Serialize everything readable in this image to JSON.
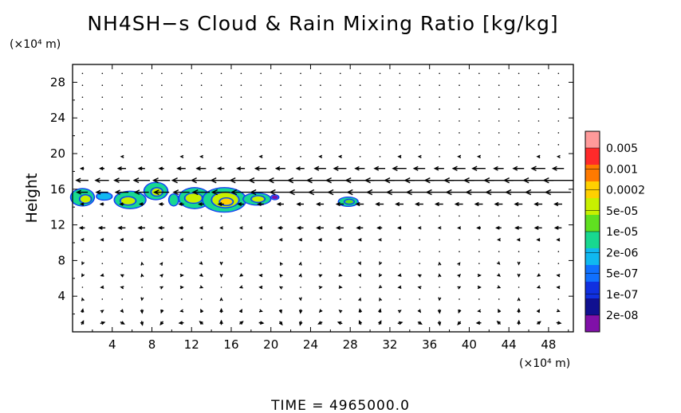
{
  "chart_data": {
    "type": "heatmap",
    "title": "NH4SH−s Cloud & Rain Mixing Ratio [kg/kg]",
    "ylabel": "Height",
    "x_unit_label": "(×10⁴ m)",
    "y_unit_label": "(×10⁴ m)",
    "xlim": [
      0,
      50.5
    ],
    "ylim": [
      0,
      30
    ],
    "x_ticks": [
      4,
      8,
      12,
      16,
      20,
      24,
      28,
      32,
      36,
      40,
      44,
      48
    ],
    "y_ticks": [
      4,
      8,
      12,
      16,
      20,
      24,
      28
    ],
    "colorbar": {
      "labels": [
        "0.005",
        "0.001",
        "0.0002",
        "5e-05",
        "1e-05",
        "2e-06",
        "5e-07",
        "1e-07",
        "2e-08"
      ],
      "colors": [
        "#ff9a9a",
        "#ff2a2a",
        "#ff7a00",
        "#ffd000",
        "#c8f000",
        "#60e020",
        "#18d890",
        "#10b8f0",
        "#1070ff",
        "#1030e0",
        "#101090",
        "#8010a8"
      ]
    },
    "cloud_patches": [
      {
        "x": 1.0,
        "y": 15.1,
        "rx": 1.1,
        "ry": 0.9,
        "level": 6
      },
      {
        "x": 1.3,
        "y": 14.9,
        "rx": 0.5,
        "ry": 0.4,
        "level": 4
      },
      {
        "x": 3.2,
        "y": 15.2,
        "rx": 0.7,
        "ry": 0.35,
        "level": 7
      },
      {
        "x": 5.8,
        "y": 14.8,
        "rx": 1.5,
        "ry": 0.9,
        "level": 6
      },
      {
        "x": 5.6,
        "y": 14.7,
        "rx": 0.7,
        "ry": 0.4,
        "level": 4
      },
      {
        "x": 8.4,
        "y": 15.8,
        "rx": 1.1,
        "ry": 0.9,
        "level": 6
      },
      {
        "x": 8.5,
        "y": 15.7,
        "rx": 0.5,
        "ry": 0.4,
        "level": 4
      },
      {
        "x": 10.2,
        "y": 14.8,
        "rx": 0.4,
        "ry": 0.6,
        "level": 6
      },
      {
        "x": 12.3,
        "y": 15.0,
        "rx": 1.5,
        "ry": 1.1,
        "level": 6
      },
      {
        "x": 12.2,
        "y": 15.0,
        "rx": 0.8,
        "ry": 0.5,
        "level": 4
      },
      {
        "x": 15.3,
        "y": 14.8,
        "rx": 2.1,
        "ry": 1.3,
        "level": 6
      },
      {
        "x": 15.4,
        "y": 14.8,
        "rx": 1.3,
        "ry": 0.8,
        "level": 4
      },
      {
        "x": 15.5,
        "y": 14.6,
        "rx": 0.6,
        "ry": 0.35,
        "level": 3
      },
      {
        "x": 18.6,
        "y": 14.9,
        "rx": 1.3,
        "ry": 0.6,
        "level": 6
      },
      {
        "x": 18.7,
        "y": 14.9,
        "rx": 0.6,
        "ry": 0.3,
        "level": 4
      },
      {
        "x": 20.4,
        "y": 15.1,
        "rx": 0.3,
        "ry": 0.2,
        "level": 11
      },
      {
        "x": 27.8,
        "y": 14.6,
        "rx": 0.9,
        "ry": 0.45,
        "level": 6
      },
      {
        "x": 27.9,
        "y": 14.6,
        "rx": 0.4,
        "ry": 0.2,
        "level": 5
      }
    ],
    "time_label": "TIME  =  4965000.0"
  }
}
